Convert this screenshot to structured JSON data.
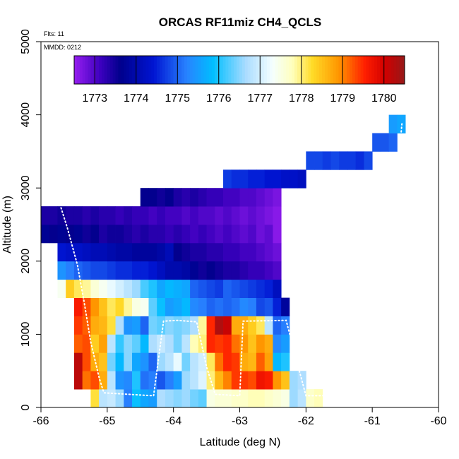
{
  "chart_data": {
    "type": "heatmap",
    "title": "ORCAS RF11miz CH4_QCLS",
    "annotations": {
      "flights": "Flts: 11",
      "date": "MMDD: 0212"
    },
    "xlabel": "Latitude (deg N)",
    "ylabel": "Altitude (m)",
    "xlim": [
      -66,
      -60
    ],
    "ylim": [
      0,
      5000
    ],
    "x_ticks": [
      -66,
      -65,
      -64,
      -63,
      -62,
      -61,
      -60
    ],
    "y_ticks": [
      0,
      1000,
      2000,
      3000,
      4000,
      5000
    ],
    "cell_width_deg": 0.125,
    "cell_height_m": 250,
    "colorbar": {
      "min": 1772.5,
      "max": 1780.5,
      "ticks": [
        1773,
        1774,
        1775,
        1776,
        1777,
        1778,
        1779,
        1780
      ],
      "location": "top inside plot"
    },
    "cells": [
      {
        "alt_bin": 0,
        "lat_start": -65.25,
        "values": [
          1778.2,
          1776.8,
          1776.9,
          1776.6,
          1775.2,
          1775.9,
          1775.6,
          1775.5,
          1776.7,
          1776.6,
          1776.5,
          1776.6,
          1776.4,
          1776.3,
          1777.5,
          1777.6,
          1777.6,
          1777.7,
          1777.7,
          1777.8,
          1777.8,
          1777.7,
          1777.6,
          1777.5,
          1776.6,
          1776.8,
          1777.7,
          1777.8
        ]
      },
      {
        "alt_bin": 1,
        "lat_start": -65.5,
        "values": [
          1780.2,
          1779.1,
          1779.3,
          1778.7,
          1776.8,
          1775.4,
          1775.3,
          1776.0,
          1775.1,
          1775.2,
          1774.9,
          1775.2,
          1775.5,
          1776.6,
          1776.8,
          1777.1,
          1778.0,
          1778.6,
          1779.0,
          1779.4,
          1779.4,
          1779.3,
          1779.7,
          1779.6,
          1778.9,
          1778.5,
          1776.6,
          1776.7
        ]
      },
      {
        "alt_bin": 2,
        "lat_start": -65.5,
        "values": [
          1780.2,
          1779.3,
          1778.7,
          1778.5,
          1776.4,
          1775.8,
          1776.5,
          1775.6,
          1775.4,
          1775.0,
          1776.6,
          1776.8,
          1777.2,
          1776.4,
          1776.8,
          1777.0,
          1778.1,
          1779.1,
          1779.5,
          1779.4,
          1778.7,
          1778.6,
          1779.2,
          1778.8,
          1775.8,
          1776.0
        ]
      },
      {
        "alt_bin": 3,
        "lat_start": -65.5,
        "values": [
          1779.2,
          1779.3,
          1778.4,
          1778.8,
          1776.8,
          1776.1,
          1776.5,
          1776.3,
          1775.8,
          1776.7,
          1776.9,
          1776.7,
          1776.4,
          1776.8,
          1777.8,
          1778.0,
          1779.5,
          1779.4,
          1779.5,
          1779.1,
          1778.9,
          1778.5,
          1778.9,
          1778.7,
          1775.3,
          1775.5
        ]
      },
      {
        "alt_bin": 4,
        "lat_start": -65.5,
        "values": [
          1779.4,
          1779.2,
          1778.7,
          1778.6,
          1778.2,
          1776.7,
          1775.4,
          1775.5,
          1775.0,
          1776.4,
          1776.3,
          1776.5,
          1776.4,
          1776.5,
          1776.7,
          1777.9,
          1779.5,
          1780.3,
          1780.1,
          1778.7,
          1778.7,
          1778.4,
          1778.1,
          1776.8,
          1775.0,
          1775.2
        ]
      },
      {
        "alt_bin": 5,
        "lat_start": -65.5,
        "values": [
          1779.6,
          1779.3,
          1778.9,
          1778.5,
          1778.1,
          1778.3,
          1777.9,
          1777.5,
          1777.4,
          1776.3,
          1775.9,
          1775.5,
          1775.6,
          1775.8,
          1775.3,
          1775.2,
          1775.0,
          1775.1,
          1775.0,
          1775.1,
          1775.3,
          1775.2,
          1774.8,
          1774.9,
          1774.5,
          1773.8
        ]
      },
      {
        "alt_bin": 6,
        "lat_start": -65.75,
        "values": [
          1777.4,
          1778.4,
          1778.1,
          1777.9,
          1777.6,
          1777.4,
          1777.2,
          1777.0,
          1776.8,
          1776.6,
          1776.2,
          1776.0,
          1775.6,
          1775.8,
          1775.7,
          1775.6,
          1775.0,
          1774.9,
          1774.8,
          1774.7,
          1775.0,
          1774.9,
          1774.8,
          1774.7,
          1774.6,
          1774.5,
          1774.2
        ]
      },
      {
        "alt_bin": 7,
        "lat_start": -65.75,
        "values": [
          1775.4,
          1775.2,
          1775.0,
          1774.9,
          1774.8,
          1774.8,
          1774.7,
          1774.6,
          1774.6,
          1774.5,
          1774.5,
          1774.4,
          1774.2,
          1774.0,
          1774.0,
          1773.9,
          1773.7,
          1773.5,
          1773.6,
          1773.5,
          1773.4,
          1773.4,
          1773.3,
          1773.2,
          1773.2,
          1773.1,
          1773.0
        ]
      },
      {
        "alt_bin": 8,
        "lat_start": -65.75,
        "values": [
          1774.4,
          1774.3,
          1774.3,
          1774.2,
          1774.1,
          1774.1,
          1774.0,
          1773.9,
          1773.9,
          1773.8,
          1773.8,
          1773.8,
          1773.9,
          1774.1,
          1773.6,
          1773.5,
          1773.4,
          1773.4,
          1773.3,
          1773.3,
          1773.2,
          1773.2,
          1773.1,
          1773.1,
          1773.0,
          1772.9,
          1772.8
        ]
      },
      {
        "alt_bin": 9,
        "lat_start": -66.0,
        "values": [
          1773.7,
          1773.6,
          1773.7,
          1773.6,
          1773.7,
          1773.5,
          1773.6,
          1773.4,
          1773.5,
          1773.5,
          1773.4,
          1773.3,
          1773.4,
          1773.3,
          1773.3,
          1773.2,
          1773.3,
          1773.2,
          1773.1,
          1773.2,
          1773.1,
          1773.0,
          1773.1,
          1773.0,
          1772.9,
          1773.0,
          1772.8,
          1772.9,
          1772.6
        ]
      },
      {
        "alt_bin": 10,
        "lat_start": -66.0,
        "values": [
          1773.4,
          1773.4,
          1773.5,
          1773.4,
          1773.4,
          1773.3,
          1773.4,
          1773.3,
          1773.3,
          1773.2,
          1773.3,
          1773.2,
          1773.2,
          1773.1,
          1773.2,
          1773.1,
          1773.1,
          1773.0,
          1773.1,
          1773.0,
          1773.0,
          1772.9,
          1773.0,
          1772.9,
          1772.8,
          1772.9,
          1772.8,
          1772.7,
          1772.6
        ]
      },
      {
        "alt_bin": 11,
        "lat_start": -64.5,
        "values": [
          1773.6,
          1773.6,
          1773.5,
          1773.6,
          1773.4,
          1773.3,
          1773.4,
          1773.3,
          1773.2,
          1773.2,
          1773.1,
          1773.1,
          1773.0,
          1773.0,
          1772.9,
          1772.8,
          1772.7
        ]
      },
      {
        "alt_bin": 12,
        "lat_start": -63.25,
        "values": [
          1774.7,
          1774.6,
          1774.6,
          1774.5,
          1774.5,
          1774.4,
          1774.4,
          1774.3,
          1774.3,
          1774.2
        ]
      },
      {
        "alt_bin": 13,
        "lat_start": -62.0,
        "values": [
          1774.8,
          1774.8,
          1774.7,
          1774.8,
          1774.7,
          1774.7,
          1774.6,
          1774.8
        ]
      },
      {
        "alt_bin": 14,
        "lat_start": -61.0,
        "values": [
          1774.9,
          1774.9,
          1775.0
        ]
      },
      {
        "alt_bin": 15,
        "lat_start": -60.75,
        "values": [
          1775.5,
          1775.6
        ]
      }
    ],
    "flight_track": [
      [
        -66.0,
        2900
      ],
      [
        -65.75,
        2880
      ],
      [
        -65.6,
        2450
      ],
      [
        -65.45,
        1950
      ],
      [
        -65.35,
        1450
      ],
      [
        -65.25,
        900
      ],
      [
        -65.12,
        400
      ],
      [
        -65.05,
        200
      ],
      [
        -64.5,
        170
      ],
      [
        -64.3,
        160
      ],
      [
        -64.15,
        1180
      ],
      [
        -63.95,
        1190
      ],
      [
        -63.65,
        1170
      ],
      [
        -63.5,
        550
      ],
      [
        -63.37,
        180
      ],
      [
        -63.0,
        160
      ],
      [
        -62.95,
        1180
      ],
      [
        -62.3,
        1190
      ],
      [
        -62.1,
        500
      ],
      [
        -62.0,
        160
      ],
      [
        -61.65,
        160
      ],
      [
        -61.3,
        150
      ],
      [
        -61.15,
        180
      ],
      [
        -60.95,
        500
      ],
      [
        -60.85,
        1300
      ],
      [
        -60.7,
        2800
      ],
      [
        -60.6,
        3400
      ],
      [
        -60.55,
        3900
      ]
    ]
  }
}
